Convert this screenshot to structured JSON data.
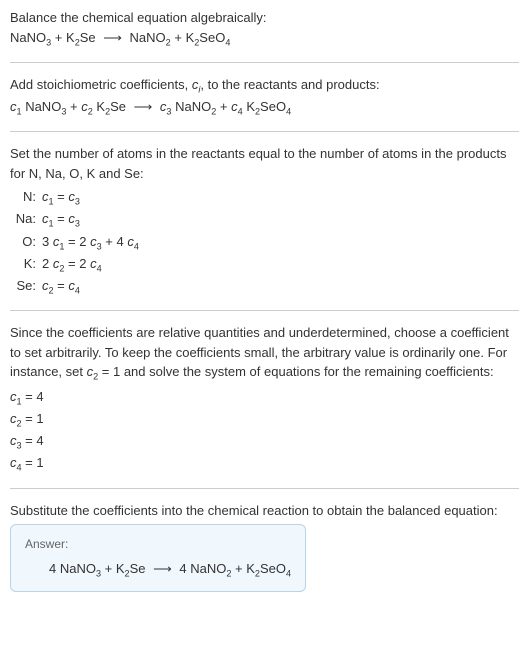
{
  "section1": {
    "title": "Balance the chemical equation algebraically:",
    "compounds": {
      "nano3": "NaNO",
      "nano3_sub": "3",
      "k2se_k": "K",
      "k2se_sub": "2",
      "k2se_se": "Se",
      "nano2": "NaNO",
      "nano2_sub": "2",
      "k2seo4_k": "K",
      "k2seo4_sub1": "2",
      "k2seo4_se": "SeO",
      "k2seo4_sub2": "4",
      "plus": " + ",
      "arrow": "⟶"
    }
  },
  "section2": {
    "title_part1": "Add stoichiometric coefficients, ",
    "title_ci": "c",
    "title_i": "i",
    "title_part2": ", to the reactants and products:",
    "c1": "c",
    "c1sub": "1",
    "c2": "c",
    "c2sub": "2",
    "c3": "c",
    "c3sub": "3",
    "c4": "c",
    "c4sub": "4",
    "sp": " "
  },
  "section3": {
    "title": "Set the number of atoms in the reactants equal to the number of atoms in the products for N, Na, O, K and Se:",
    "rows": [
      {
        "label": "N:",
        "eq_c1": "c",
        "eq_s1": "1",
        "eq_mid": " = ",
        "eq_c2": "c",
        "eq_s2": "3"
      },
      {
        "label": "Na:",
        "eq_c1": "c",
        "eq_s1": "1",
        "eq_mid": " = ",
        "eq_c2": "c",
        "eq_s2": "3"
      },
      {
        "label": "O:",
        "pre": "3 ",
        "eq_c1": "c",
        "eq_s1": "1",
        "eq_mid": " = 2 ",
        "eq_c2": "c",
        "eq_s2": "3",
        "plus": " + 4 ",
        "eq_c3": "c",
        "eq_s3": "4"
      },
      {
        "label": "K:",
        "pre": "2 ",
        "eq_c1": "c",
        "eq_s1": "2",
        "eq_mid": " = 2 ",
        "eq_c2": "c",
        "eq_s2": "4"
      },
      {
        "label": "Se:",
        "eq_c1": "c",
        "eq_s1": "2",
        "eq_mid": " = ",
        "eq_c2": "c",
        "eq_s2": "4"
      }
    ]
  },
  "section4": {
    "title_p1": "Since the coefficients are relative quantities and underdetermined, choose a coefficient to set arbitrarily. To keep the coefficients small, the arbitrary value is ordinarily one. For instance, set ",
    "title_c": "c",
    "title_s": "2",
    "title_p2": " = 1 and solve the system of equations for the remaining coefficients:",
    "coeffs": [
      {
        "c": "c",
        "s": "1",
        "v": " = 4"
      },
      {
        "c": "c",
        "s": "2",
        "v": " = 1"
      },
      {
        "c": "c",
        "s": "3",
        "v": " = 4"
      },
      {
        "c": "c",
        "s": "4",
        "v": " = 1"
      }
    ]
  },
  "section5": {
    "title": "Substitute the coefficients into the chemical reaction to obtain the balanced equation:",
    "answer_label": "Answer:",
    "four": "4 ",
    "plus": " + ",
    "arrow": "⟶"
  }
}
